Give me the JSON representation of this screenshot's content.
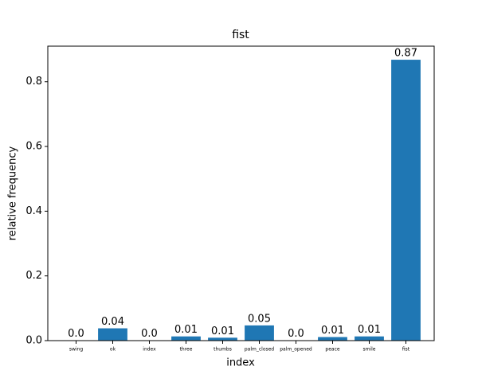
{
  "chart_data": {
    "type": "bar",
    "title": "fist",
    "x_label": "index",
    "y_label": "relative frequency",
    "categories": [
      "swing",
      "ok",
      "index",
      "three",
      "thumbs",
      "palm_closed",
      "palm_opened",
      "peace",
      "smile",
      "fist"
    ],
    "values": [
      0.001,
      0.038,
      0.001,
      0.013,
      0.009,
      0.047,
      0.001,
      0.011,
      0.013,
      0.868
    ],
    "value_labels": [
      "0.0",
      "0.04",
      "0.0",
      "0.01",
      "0.01",
      "0.05",
      "0.0",
      "0.01",
      "0.01",
      "0.87"
    ],
    "color": "#1f77b4",
    "ylim": [
      0,
      0.91
    ],
    "yticks": [
      {
        "value": 0,
        "label": "0.0"
      },
      0.2,
      0.4,
      0.6,
      0.8
    ],
    "grid": false
  }
}
